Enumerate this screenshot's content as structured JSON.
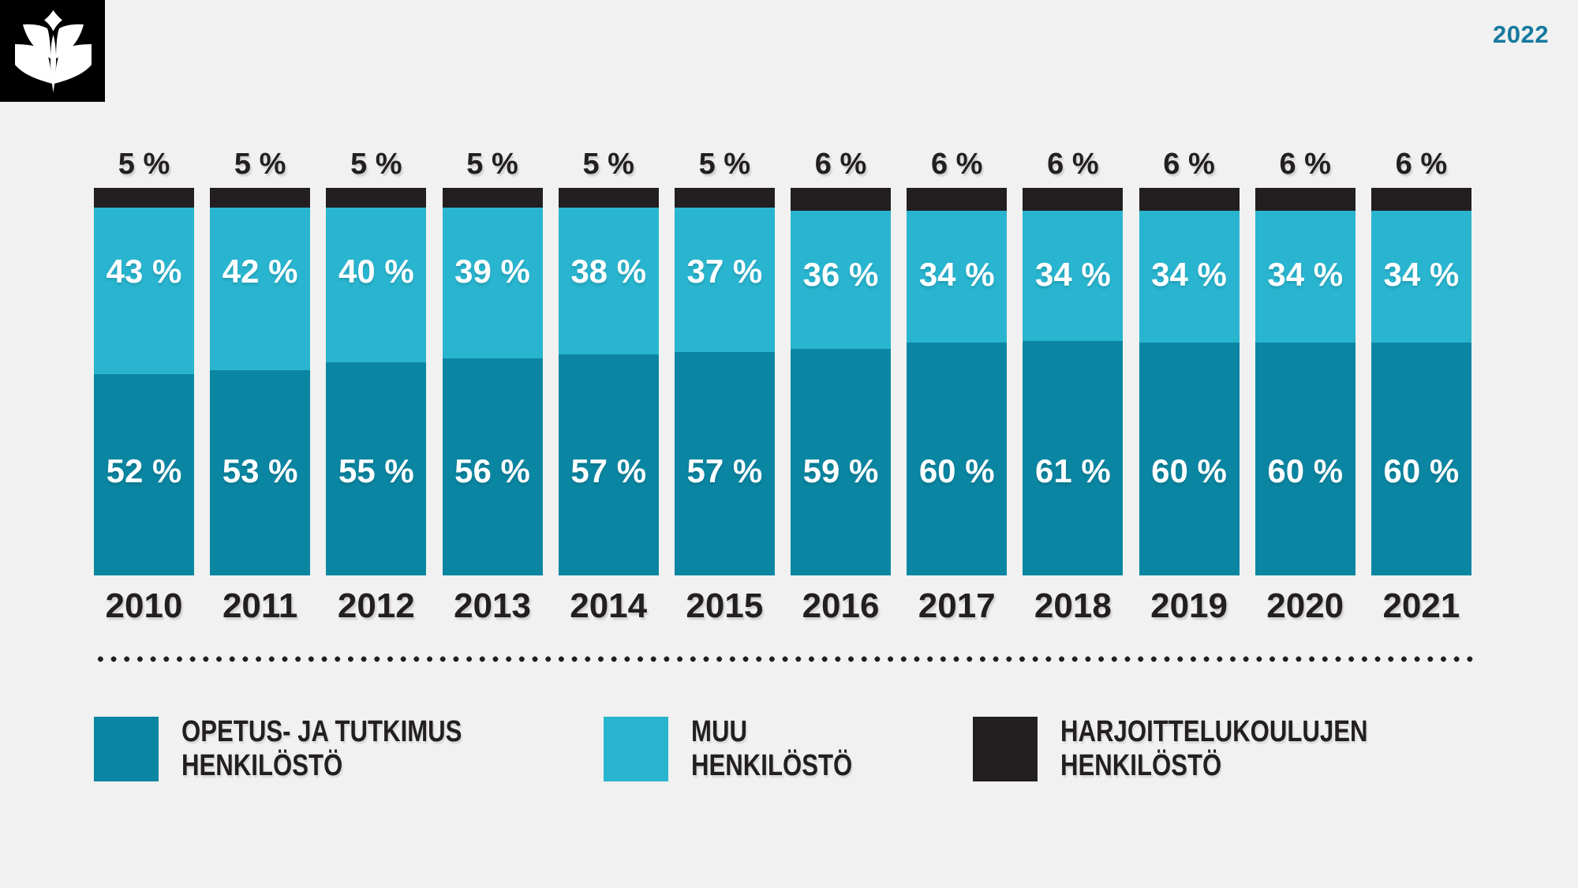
{
  "page": {
    "background_color": "#f0f1f0",
    "text_color": "#231f20"
  },
  "header": {
    "logo_icon": "book-sprout-logo",
    "logo_background": "#000000",
    "year_badge": "2022",
    "year_badge_color": "#15799e"
  },
  "chart_data": {
    "type": "bar",
    "stacked": true,
    "orientation": "vertical",
    "unit": "%",
    "value_label_suffix": " %",
    "grid": false,
    "legend_position": "bottom",
    "categories": [
      "2010",
      "2011",
      "2012",
      "2013",
      "2014",
      "2015",
      "2016",
      "2017",
      "2018",
      "2019",
      "2020",
      "2021"
    ],
    "series": [
      {
        "name": "OPETUS- JA TUTKIMUS HENKILÖSTÖ",
        "slug": "opetus-ja-tutkimus-henkilosto",
        "color": "#0b86a2",
        "stack_position": "bottom",
        "label_placement": "inside",
        "values": [
          52,
          53,
          55,
          56,
          57,
          57,
          59,
          60,
          61,
          60,
          60,
          60
        ]
      },
      {
        "name": "MUU HENKILÖSTÖ",
        "slug": "muu-henkilosto",
        "color": "#29b5cf",
        "stack_position": "middle",
        "label_placement": "inside",
        "values": [
          43,
          42,
          40,
          39,
          38,
          37,
          36,
          34,
          34,
          34,
          34,
          34
        ]
      },
      {
        "name": "HARJOITTELUKOULUJEN HENKILÖSTÖ",
        "slug": "harjoittelukoulujen-henkilosto",
        "color": "#231f20",
        "stack_position": "top",
        "label_placement": "above-bar",
        "values": [
          5,
          5,
          5,
          5,
          5,
          5,
          6,
          6,
          6,
          6,
          6,
          6
        ]
      }
    ]
  },
  "legend": {
    "items": [
      {
        "color": "#0b86a2",
        "lines": [
          "OPETUS- JA TUTKIMUS",
          "HENKILÖSTÖ"
        ]
      },
      {
        "color": "#29b5cf",
        "lines": [
          "MUU",
          "HENKILÖSTÖ"
        ]
      },
      {
        "color": "#231f20",
        "lines": [
          "HARJOITTELUKOULUJEN",
          "HENKILÖSTÖ"
        ]
      }
    ]
  }
}
